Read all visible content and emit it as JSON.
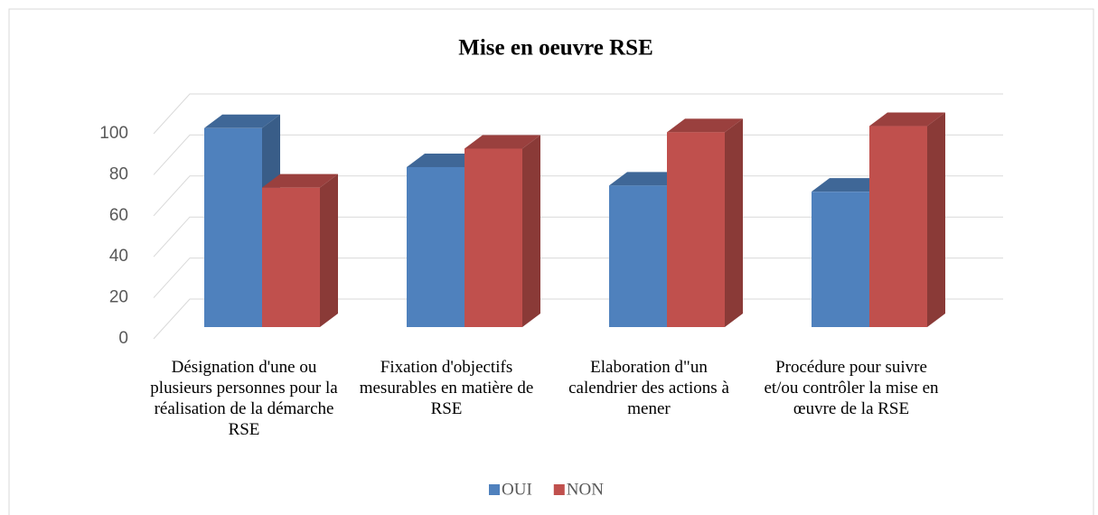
{
  "chart_data": {
    "type": "bar3d",
    "title": "Mise en oeuvre RSE",
    "categories": [
      "Désignation d'une ou plusieurs personnes pour la réalisation de la démarche RSE",
      "Fixation d'objectifs mesurables en matière de RSE",
      "Elaboration d\"un calendrier des actions à mener",
      "Procédure pour suivre et/ou contrôler la mise en œuvre de la RSE"
    ],
    "series": [
      {
        "name": "OUI",
        "color": "#4f81bd",
        "values": [
          97,
          78,
          69,
          66
        ]
      },
      {
        "name": "NON",
        "color": "#c0504d",
        "values": [
          68,
          87,
          95,
          98
        ]
      }
    ],
    "ylim": [
      0,
      100
    ],
    "yticks": [
      0,
      20,
      40,
      60,
      80,
      100
    ],
    "grid": true,
    "legend": "bottom"
  }
}
